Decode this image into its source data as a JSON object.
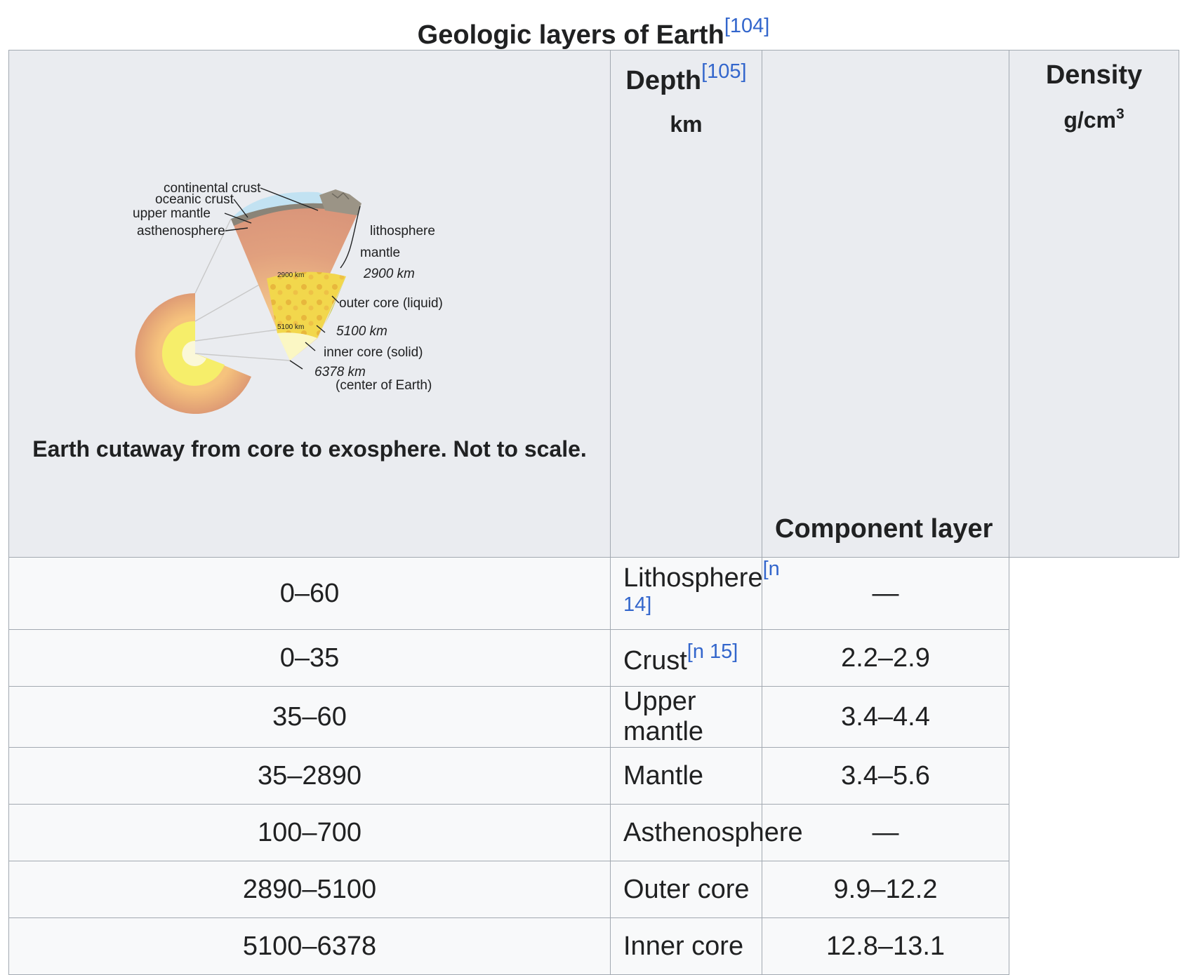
{
  "caption": {
    "title": "Geologic layers of Earth",
    "ref": "[104]"
  },
  "figure": {
    "caption": "Earth cutaway from core to exosphere. Not to scale.",
    "labels": {
      "continental_crust": "continental crust",
      "oceanic_crust": "oceanic crust",
      "upper_mantle": "upper mantle",
      "asthenosphere": "asthenosphere",
      "lithosphere": "lithosphere",
      "mantle": "mantle",
      "km2900": "2900 km",
      "outer_core": "outer core (liquid)",
      "km5100": "5100 km",
      "inner_core": "inner core (solid)",
      "km6378": "6378 km",
      "center": "(center of Earth)",
      "small_2900": "2900 km",
      "small_5100": "5100 km"
    },
    "colors": {
      "crust": "#c2e2f2",
      "mantle": "#d9957a",
      "outer_core": "#f1d44c",
      "inner_core": "#fbf7c4"
    }
  },
  "table": {
    "headers": {
      "depth": "Depth",
      "depth_ref": "[105]",
      "depth_unit": "km",
      "component": "Component layer",
      "density": "Density",
      "density_unit": "g/cm",
      "density_exp": "3"
    },
    "rows": [
      {
        "depth": "0–60",
        "layer": "Lithosphere",
        "note": "[n 14]",
        "density": "—"
      },
      {
        "depth": "0–35",
        "layer": "Crust",
        "note": "[n 15]",
        "density": "2.2–2.9"
      },
      {
        "depth": "35–60",
        "layer": "Upper mantle",
        "note": "",
        "density": "3.4–4.4"
      },
      {
        "depth": "35–2890",
        "layer": "Mantle",
        "note": "",
        "density": "3.4–5.6"
      },
      {
        "depth": "100–700",
        "layer": "Asthenosphere",
        "note": "",
        "density": "—"
      },
      {
        "depth": "2890–5100",
        "layer": "Outer core",
        "note": "",
        "density": "9.9–12.2"
      },
      {
        "depth": "5100–6378",
        "layer": "Inner core",
        "note": "",
        "density": "12.8–13.1"
      }
    ]
  }
}
